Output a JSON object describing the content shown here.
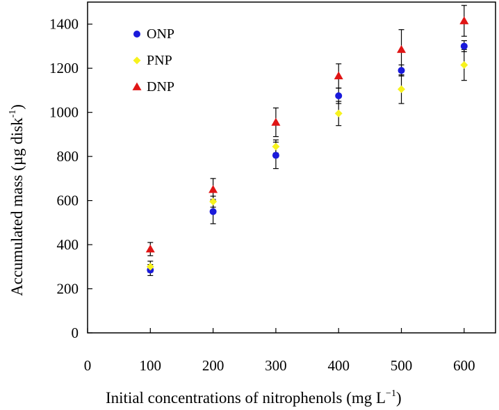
{
  "chart_data": {
    "type": "scatter",
    "xlabel": {
      "main": "Initial concentrations of nitrophenols (mg L",
      "sup": "−1",
      "tail": ")"
    },
    "ylabel": {
      "main": "Accumulated mass (µg disk",
      "sup": "-1",
      "tail": ")"
    },
    "xlim": [
      0,
      650
    ],
    "ylim": [
      0,
      1500
    ],
    "xticks": [
      0,
      100,
      200,
      300,
      400,
      500,
      600
    ],
    "yticks": [
      0,
      200,
      400,
      600,
      800,
      1000,
      1200,
      1400
    ],
    "grid": false,
    "legend_position": "top-left",
    "series": [
      {
        "name": "ONP",
        "marker": "circle",
        "color": "#1a1adb",
        "x": [
          100,
          200,
          300,
          400,
          500,
          600
        ],
        "y": [
          285,
          550,
          805,
          1075,
          1190,
          1300
        ],
        "err": [
          25,
          55,
          60,
          35,
          25,
          25
        ]
      },
      {
        "name": "PNP",
        "marker": "diamond",
        "color": "#f7f21e",
        "x": [
          100,
          200,
          300,
          400,
          500,
          600
        ],
        "y": [
          300,
          595,
          845,
          995,
          1105,
          1215
        ],
        "err": [
          25,
          25,
          30,
          55,
          65,
          70
        ]
      },
      {
        "name": "DNP",
        "marker": "triangle",
        "color": "#e01515",
        "x": [
          100,
          200,
          300,
          400,
          500,
          600
        ],
        "y": [
          380,
          650,
          955,
          1165,
          1285,
          1415
        ],
        "err": [
          30,
          50,
          65,
          55,
          90,
          70
        ]
      }
    ]
  }
}
